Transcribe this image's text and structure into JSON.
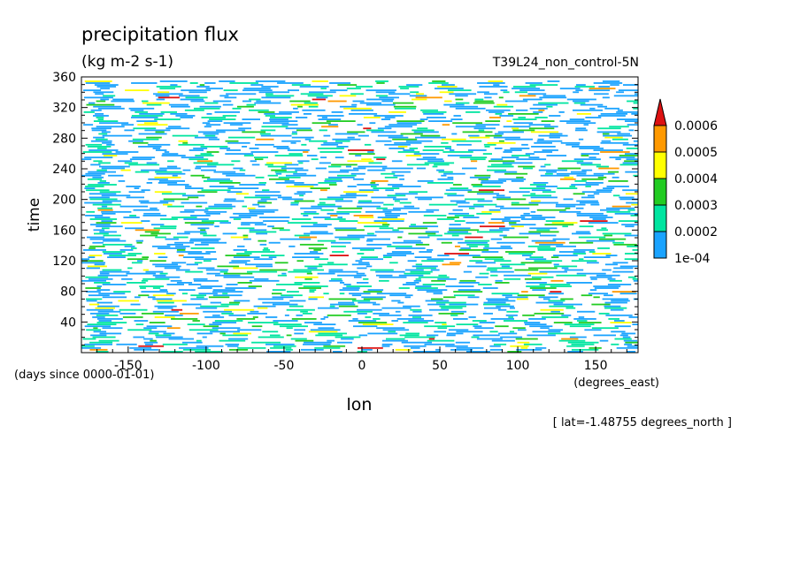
{
  "chart_data": {
    "type": "heatmap",
    "title": "precipitation flux",
    "units": "(kg m-2 s-1)",
    "run_label": "T39L24_non_control-5N",
    "xlabel": "lon",
    "x_units": "(degrees_east)",
    "ylabel": "time",
    "y_units": "(days since 0000-01-01)",
    "footnote": "[ lat=-1.48755 degrees_north ]",
    "xlim": [
      -180,
      177.19
    ],
    "ylim": [
      0,
      360
    ],
    "x_ticks": [
      "-150",
      "-100",
      "-50",
      "0",
      "50",
      "100",
      "150"
    ],
    "y_ticks": [
      "40",
      "80",
      "120",
      "160",
      "200",
      "240",
      "280",
      "320",
      "360"
    ],
    "colorbar": {
      "labels": [
        "1e-04",
        "0.0002",
        "0.0003",
        "0.0004",
        "0.0005",
        "0.0006"
      ],
      "colors": [
        "#1aa3ff",
        "#00e5a0",
        "#22cc22",
        "#ffff00",
        "#ff9900",
        "#dd1111"
      ]
    },
    "grid": false
  }
}
